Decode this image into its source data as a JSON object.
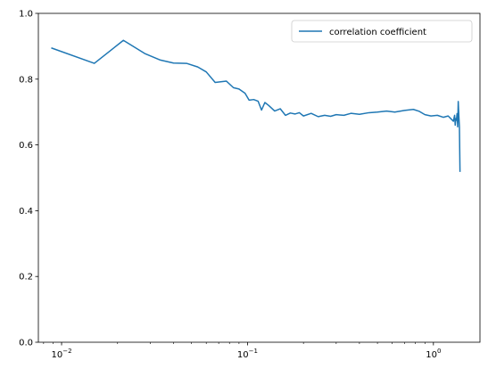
{
  "chart_data": {
    "type": "line",
    "title": "",
    "xlabel": "",
    "ylabel": "",
    "xscale": "log",
    "xlim": [
      0.0075,
      1.78
    ],
    "ylim": [
      0.0,
      1.0
    ],
    "xticks": [
      {
        "value": 0.01,
        "base": "10",
        "exp": "−2"
      },
      {
        "value": 0.1,
        "base": "10",
        "exp": "−1"
      },
      {
        "value": 1,
        "base": "10",
        "exp": "0"
      }
    ],
    "yticks": [
      "0.0",
      "0.2",
      "0.4",
      "0.6",
      "0.8",
      "1.0"
    ],
    "grid": false,
    "legend": {
      "position": "top-right",
      "entries": [
        "correlation coefficient"
      ]
    },
    "series": [
      {
        "name": "correlation coefficient",
        "color": "#1f77b4",
        "x": [
          0.0088,
          0.015,
          0.0215,
          0.028,
          0.034,
          0.04,
          0.047,
          0.054,
          0.06,
          0.067,
          0.077,
          0.084,
          0.09,
          0.097,
          0.102,
          0.108,
          0.114,
          0.119,
          0.124,
          0.13,
          0.14,
          0.15,
          0.16,
          0.17,
          0.18,
          0.19,
          0.2,
          0.22,
          0.24,
          0.26,
          0.28,
          0.3,
          0.33,
          0.36,
          0.4,
          0.45,
          0.5,
          0.56,
          0.62,
          0.7,
          0.78,
          0.84,
          0.9,
          0.97,
          1.05,
          1.13,
          1.2,
          1.25,
          1.28,
          1.3,
          1.31,
          1.32,
          1.33,
          1.34,
          1.35,
          1.36,
          1.37,
          1.38,
          1.39
        ],
        "y": [
          0.895,
          0.848,
          0.918,
          0.878,
          0.858,
          0.849,
          0.848,
          0.837,
          0.822,
          0.79,
          0.794,
          0.774,
          0.77,
          0.757,
          0.736,
          0.738,
          0.733,
          0.706,
          0.729,
          0.72,
          0.703,
          0.71,
          0.69,
          0.697,
          0.694,
          0.698,
          0.688,
          0.696,
          0.686,
          0.69,
          0.687,
          0.692,
          0.69,
          0.696,
          0.693,
          0.698,
          0.7,
          0.703,
          0.7,
          0.705,
          0.708,
          0.702,
          0.692,
          0.688,
          0.69,
          0.684,
          0.688,
          0.678,
          0.672,
          0.69,
          0.66,
          0.68,
          0.675,
          0.695,
          0.655,
          0.732,
          0.69,
          0.655,
          0.518
        ]
      }
    ]
  }
}
